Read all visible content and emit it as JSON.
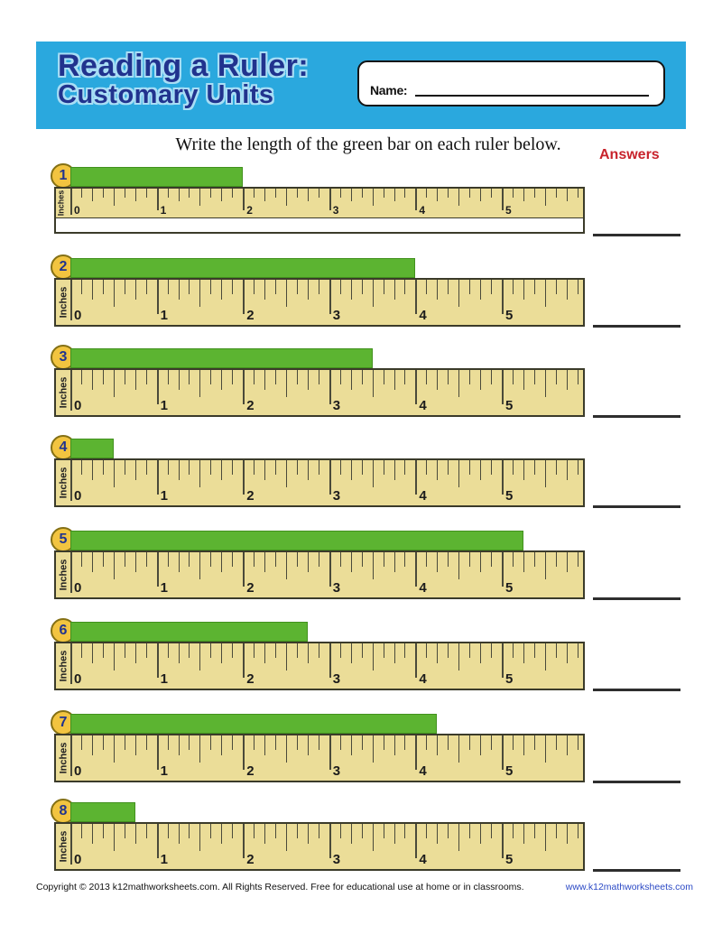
{
  "header": {
    "title_line1": "Reading a Ruler:",
    "title_line2": "Customary Units",
    "name_label": "Name:"
  },
  "instruction": "Write the length of the green bar on each ruler below.",
  "answers_label": "Answers",
  "ruler_spec": {
    "unit_label": "Inches",
    "number_labels": [
      "0",
      "1",
      "2",
      "3",
      "4",
      "5"
    ],
    "subdivisions_per_inch": 8,
    "visible_inches": 5.875
  },
  "rulers": [
    {
      "number": "1",
      "bar_length_inches": 2,
      "squashed": true
    },
    {
      "number": "2",
      "bar_length_inches": 4,
      "squashed": false
    },
    {
      "number": "3",
      "bar_length_inches": 3.5,
      "squashed": false
    },
    {
      "number": "4",
      "bar_length_inches": 0.5,
      "squashed": false
    },
    {
      "number": "5",
      "bar_length_inches": 5.25,
      "squashed": false
    },
    {
      "number": "6",
      "bar_length_inches": 2.75,
      "squashed": false
    },
    {
      "number": "7",
      "bar_length_inches": 4.25,
      "squashed": false
    },
    {
      "number": "8",
      "bar_length_inches": 0.75,
      "squashed": false
    }
  ],
  "footer": {
    "copyright": "Copyright © 2013  k12mathworksheets.com. All Rights Reserved. Free for educational use at home or in classrooms.",
    "website": "www.k12mathworksheets.com"
  },
  "colors": {
    "header_blue": "#2AA8DE",
    "title_navy": "#21338E",
    "title_glow": "#A9DEF5",
    "bar_green": "#5CB431",
    "ruler_tan": "#EBDD98",
    "badge_gold": "#F2C440",
    "answers_red": "#C8232C",
    "footer_link_blue": "#2B49C5"
  }
}
